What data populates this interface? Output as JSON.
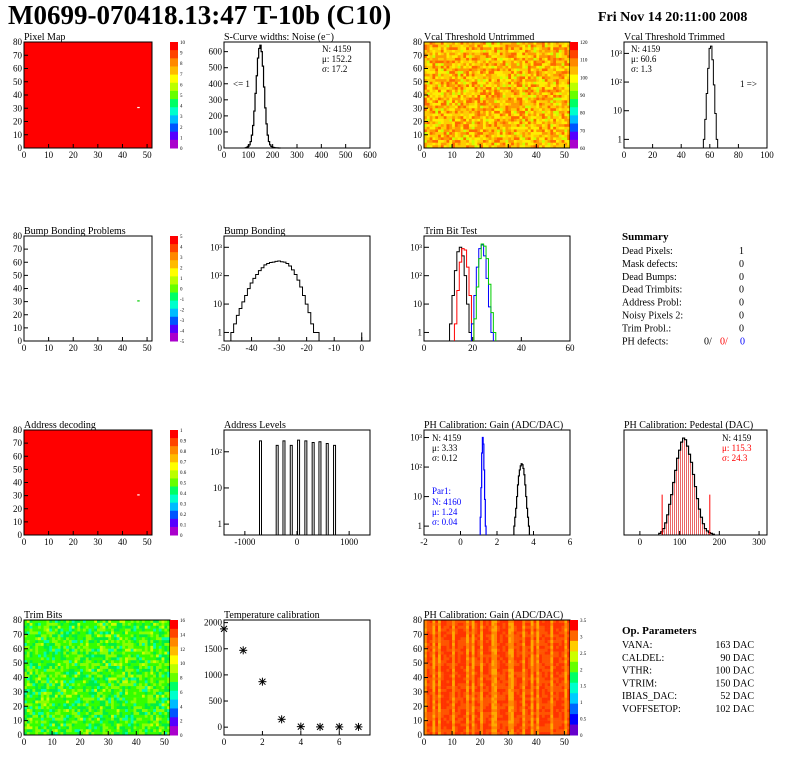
{
  "header": {
    "title": "M0699-070418.13:47 T-10b (C10)",
    "date": "Fri Nov 14 20:11:00 2008"
  },
  "colors": {
    "red": "#ff0000",
    "black": "#000000",
    "green": "#00cc00",
    "blue": "#0000ff"
  },
  "chart_data": [
    {
      "id": "pixel-map",
      "type": "heatmap",
      "title": "Pixel Map",
      "x_ticks": [
        0,
        10,
        20,
        30,
        40,
        50
      ],
      "y_ticks": [
        0,
        10,
        20,
        30,
        40,
        50,
        60,
        70,
        80
      ],
      "xlim": [
        0,
        52
      ],
      "ylim": [
        0,
        80
      ],
      "fill": "uniform-red",
      "palette_ticks": [
        0,
        1,
        2,
        3,
        4,
        5,
        6,
        7,
        8,
        9,
        10
      ]
    },
    {
      "id": "scurve-noise",
      "type": "histogram",
      "title": "S-Curve widths: Noise (e⁻)",
      "x_ticks": [
        0,
        100,
        200,
        300,
        400,
        500,
        600
      ],
      "y_ticks": [
        0,
        100,
        200,
        300,
        400,
        500,
        600
      ],
      "xlim": [
        0,
        600
      ],
      "ylim": [
        0,
        660
      ],
      "stats": {
        "entries": "N: 4159",
        "mean": "μ: 152.2",
        "sigma": "σ: 17.2"
      },
      "annotation": "<= 1",
      "bins": {
        "x": [
          90,
          95,
          100,
          105,
          110,
          115,
          120,
          125,
          130,
          135,
          140,
          145,
          150,
          155,
          160,
          165,
          170,
          175,
          180,
          185,
          190,
          195,
          200,
          205,
          210,
          215,
          220,
          225,
          230
        ],
        "y": [
          2,
          5,
          10,
          20,
          40,
          80,
          140,
          230,
          340,
          450,
          560,
          620,
          640,
          600,
          510,
          380,
          250,
          150,
          80,
          40,
          20,
          10,
          5,
          3,
          2,
          1,
          1,
          0,
          0
        ]
      }
    },
    {
      "id": "vcal-untrimmed",
      "type": "heatmap",
      "title": "Vcal Threshold Untrimmed",
      "x_ticks": [
        0,
        10,
        20,
        30,
        40,
        50
      ],
      "y_ticks": [
        0,
        10,
        20,
        30,
        40,
        50,
        60,
        70,
        80
      ],
      "xlim": [
        0,
        52
      ],
      "ylim": [
        0,
        80
      ],
      "fill": "yellow-orange-noise",
      "palette_ticks": [
        60,
        70,
        80,
        90,
        100,
        110,
        120
      ]
    },
    {
      "id": "vcal-trimmed",
      "type": "histogram",
      "title": "Vcal Threshold Trimmed",
      "log": true,
      "x_ticks": [
        0,
        20,
        40,
        60,
        80,
        100
      ],
      "y_ticks": [
        "1",
        "10",
        "10²",
        "10³"
      ],
      "xlim": [
        0,
        100
      ],
      "ylog": [
        0.5,
        2500
      ],
      "stats": {
        "entries": "N: 4159",
        "mean": "μ: 60.6",
        "sigma": "σ:  1.3"
      },
      "annotation": "1 =>",
      "bins": {
        "x": [
          56,
          57,
          58,
          59,
          60,
          61,
          62,
          63,
          64,
          65
        ],
        "y": [
          1,
          5,
          40,
          300,
          1500,
          1800,
          600,
          80,
          8,
          1
        ]
      }
    },
    {
      "id": "bump-bonding-problems",
      "type": "heatmap",
      "title": "Bump Bonding Problems",
      "x_ticks": [
        0,
        10,
        20,
        30,
        40,
        50
      ],
      "y_ticks": [
        0,
        10,
        20,
        30,
        40,
        50,
        60,
        70,
        80
      ],
      "xlim": [
        0,
        52
      ],
      "ylim": [
        0,
        80
      ],
      "fill": "empty",
      "palette_ticks": [
        -5,
        -4,
        -3,
        -2,
        -1,
        0,
        1,
        2,
        3,
        4,
        5
      ]
    },
    {
      "id": "bump-bonding",
      "type": "histogram",
      "title": "Bump Bonding",
      "log": true,
      "x_ticks": [
        -50,
        -40,
        -30,
        -20,
        -10,
        0
      ],
      "y_ticks": [
        "1",
        "10",
        "10²",
        "10³"
      ],
      "xlim": [
        -50,
        3
      ],
      "ylog": [
        0.5,
        2500
      ],
      "bins": {
        "x": [
          -47,
          -46,
          -45,
          -44,
          -43,
          -42,
          -41,
          -40,
          -39,
          -38,
          -37,
          -36,
          -35,
          -34,
          -33,
          -32,
          -31,
          -30,
          -29,
          -28,
          -27,
          -26,
          -25,
          -24,
          -23,
          -22,
          -21,
          -20,
          -19,
          -18,
          -17,
          -16
        ],
        "y": [
          1,
          2,
          4,
          7,
          12,
          20,
          35,
          55,
          80,
          110,
          150,
          190,
          240,
          270,
          290,
          300,
          320,
          330,
          310,
          300,
          270,
          220,
          160,
          110,
          70,
          40,
          20,
          10,
          5,
          2,
          1,
          1
        ]
      }
    },
    {
      "id": "trim-bit-test",
      "type": "histogram",
      "title": "Trim Bit Test",
      "log": true,
      "x_ticks": [
        0,
        20,
        40,
        60
      ],
      "y_ticks": [
        "1",
        "10",
        "10²",
        "10³"
      ],
      "xlim": [
        0,
        60
      ],
      "ylog": [
        0.5,
        2500
      ],
      "series": [
        {
          "color": "black",
          "x": [
            11,
            12,
            13,
            14,
            15,
            16,
            17,
            18,
            19
          ],
          "y": [
            2,
            20,
            150,
            700,
            1000,
            500,
            100,
            10,
            1
          ]
        },
        {
          "color": "red",
          "x": [
            13,
            14,
            15,
            16,
            17,
            18,
            19,
            20
          ],
          "y": [
            2,
            30,
            300,
            900,
            800,
            200,
            20,
            2
          ]
        },
        {
          "color": "blue",
          "x": [
            20,
            21,
            22,
            23,
            24,
            25,
            26,
            27,
            28
          ],
          "y": [
            2,
            20,
            200,
            900,
            1200,
            500,
            80,
            8,
            1
          ]
        },
        {
          "color": "green",
          "x": [
            21,
            22,
            23,
            24,
            25,
            26,
            27,
            28,
            29
          ],
          "y": [
            3,
            40,
            400,
            1300,
            1100,
            400,
            50,
            5,
            1
          ]
        }
      ]
    },
    {
      "id": "summary",
      "type": "table",
      "title": "Summary",
      "rows": [
        {
          "label": "Dead Pixels:",
          "value": "1"
        },
        {
          "label": "Mask defects:",
          "value": "0"
        },
        {
          "label": "Dead Bumps:",
          "value": "0"
        },
        {
          "label": "Dead Trimbits:",
          "value": "0"
        },
        {
          "label": "Address Probl:",
          "value": "0"
        },
        {
          "label": "Noisy Pixels 2:",
          "value": "0"
        },
        {
          "label": "Trim Probl.:",
          "value": "0"
        }
      ],
      "ph_defects": {
        "label": "PH defects:",
        "v1": "0/",
        "v2": "0/",
        "v3": "0"
      }
    },
    {
      "id": "address-decoding",
      "type": "heatmap",
      "title": "Address decoding",
      "x_ticks": [
        0,
        10,
        20,
        30,
        40,
        50
      ],
      "y_ticks": [
        0,
        10,
        20,
        30,
        40,
        50,
        60,
        70,
        80
      ],
      "xlim": [
        0,
        52
      ],
      "ylim": [
        0,
        80
      ],
      "fill": "uniform-red",
      "palette_ticks": [
        0,
        0.1,
        0.2,
        0.3,
        0.4,
        0.5,
        0.6,
        0.7,
        0.8,
        0.9,
        1
      ]
    },
    {
      "id": "address-levels",
      "type": "histogram",
      "title": "Address Levels",
      "log": true,
      "x_ticks": [
        -1000,
        0,
        1000
      ],
      "y_ticks": [
        "1",
        "10",
        "10²"
      ],
      "xlim": [
        -1400,
        1400
      ],
      "ylog": [
        0.5,
        400
      ],
      "peaks": [
        -700,
        -380,
        -250,
        -110,
        30,
        170,
        310,
        440,
        580,
        720
      ],
      "peak_heights": [
        200,
        150,
        200,
        150,
        210,
        200,
        180,
        190,
        170,
        150
      ]
    },
    {
      "id": "ph-gain",
      "type": "histogram",
      "title": "PH Calibration: Gain (ADC/DAC)",
      "log": true,
      "x_ticks": [
        -2,
        0,
        2,
        4,
        6
      ],
      "y_ticks": [
        "1",
        "10",
        "10²",
        "10³"
      ],
      "xlim": [
        -2,
        6
      ],
      "ylog": [
        0.5,
        1800
      ],
      "stats": {
        "entries": "N: 4159",
        "mean": "μ: 3.33",
        "sigma": "σ: 0.12"
      },
      "par1": {
        "title": "Par1:",
        "entries": "N: 4160",
        "mean": "μ: 1.24",
        "sigma": "σ: 0.04"
      },
      "series": [
        {
          "color": "black",
          "x": [
            2.95,
            3.0,
            3.05,
            3.1,
            3.15,
            3.2,
            3.25,
            3.3,
            3.35,
            3.4,
            3.45,
            3.5,
            3.55,
            3.6,
            3.65,
            3.7,
            3.75
          ],
          "y": [
            1,
            2,
            4,
            10,
            25,
            50,
            80,
            110,
            130,
            120,
            90,
            55,
            25,
            10,
            4,
            2,
            1
          ]
        },
        {
          "color": "blue",
          "x": [
            1.1,
            1.14,
            1.18,
            1.22,
            1.26,
            1.3,
            1.34,
            1.38
          ],
          "y": [
            2,
            20,
            300,
            1000,
            600,
            80,
            8,
            1
          ]
        }
      ]
    },
    {
      "id": "ph-pedestal",
      "type": "histogram",
      "title": "PH Calibration: Pedestal (DAC)",
      "x_ticks": [
        0,
        100,
        200,
        300
      ],
      "xlim": [
        -40,
        320
      ],
      "ylim": [
        0,
        130
      ],
      "stats": {
        "entries": "N: 4159",
        "mean": "μ: 115.3",
        "sigma": "σ: 24.3"
      },
      "fit_range": [
        56,
        176
      ],
      "bins": {
        "x": [
          50,
          55,
          60,
          65,
          70,
          75,
          80,
          85,
          90,
          95,
          100,
          105,
          110,
          115,
          120,
          125,
          130,
          135,
          140,
          145,
          150,
          155,
          160,
          165,
          170,
          175,
          180,
          185
        ],
        "y": [
          2,
          4,
          8,
          15,
          25,
          38,
          50,
          65,
          80,
          95,
          105,
          115,
          120,
          118,
          110,
          100,
          90,
          75,
          60,
          45,
          32,
          22,
          14,
          8,
          5,
          3,
          2,
          1
        ]
      }
    },
    {
      "id": "trim-bits",
      "type": "heatmap",
      "title": "Trim Bits",
      "x_ticks": [
        0,
        10,
        20,
        30,
        40,
        50
      ],
      "y_ticks": [
        0,
        10,
        20,
        30,
        40,
        50,
        60,
        70,
        80
      ],
      "xlim": [
        0,
        52
      ],
      "ylim": [
        0,
        80
      ],
      "fill": "green-noise",
      "palette_ticks": [
        0,
        2,
        4,
        6,
        8,
        10,
        12,
        14,
        16
      ]
    },
    {
      "id": "temperature-calibration",
      "type": "scatter",
      "title": "Temperature calibration",
      "x_ticks": [
        0,
        2,
        4,
        6
      ],
      "y_ticks": [
        0,
        500,
        1000,
        1500,
        2000
      ],
      "xlim": [
        0,
        7.6
      ],
      "ylim": [
        -150,
        2050
      ],
      "points": {
        "x": [
          0,
          1,
          2,
          3,
          4,
          5,
          6,
          7
        ],
        "y": [
          1880,
          1470,
          870,
          150,
          10,
          5,
          5,
          5
        ]
      }
    },
    {
      "id": "ph-gain-map",
      "type": "heatmap",
      "title": "PH Calibration: Gain (ADC/DAC)",
      "x_ticks": [
        0,
        10,
        20,
        30,
        40,
        50
      ],
      "y_ticks": [
        0,
        10,
        20,
        30,
        40,
        50,
        60,
        70,
        80
      ],
      "xlim": [
        0,
        52
      ],
      "ylim": [
        0,
        80
      ],
      "fill": "orange-stripes",
      "palette_ticks": [
        0,
        0.5,
        1,
        1.5,
        2,
        2.5,
        3,
        3.5
      ]
    },
    {
      "id": "op-parameters",
      "type": "table",
      "title": "Op. Parameters",
      "rows": [
        {
          "label": "VANA:",
          "value": "163 DAC"
        },
        {
          "label": "CALDEL:",
          "value": "90 DAC"
        },
        {
          "label": "VTHR:",
          "value": "100 DAC"
        },
        {
          "label": "VTRIM:",
          "value": "150 DAC"
        },
        {
          "label": "IBIAS_DAC:",
          "value": "52 DAC"
        },
        {
          "label": "VOFFSETOP:",
          "value": "102 DAC"
        }
      ]
    }
  ]
}
